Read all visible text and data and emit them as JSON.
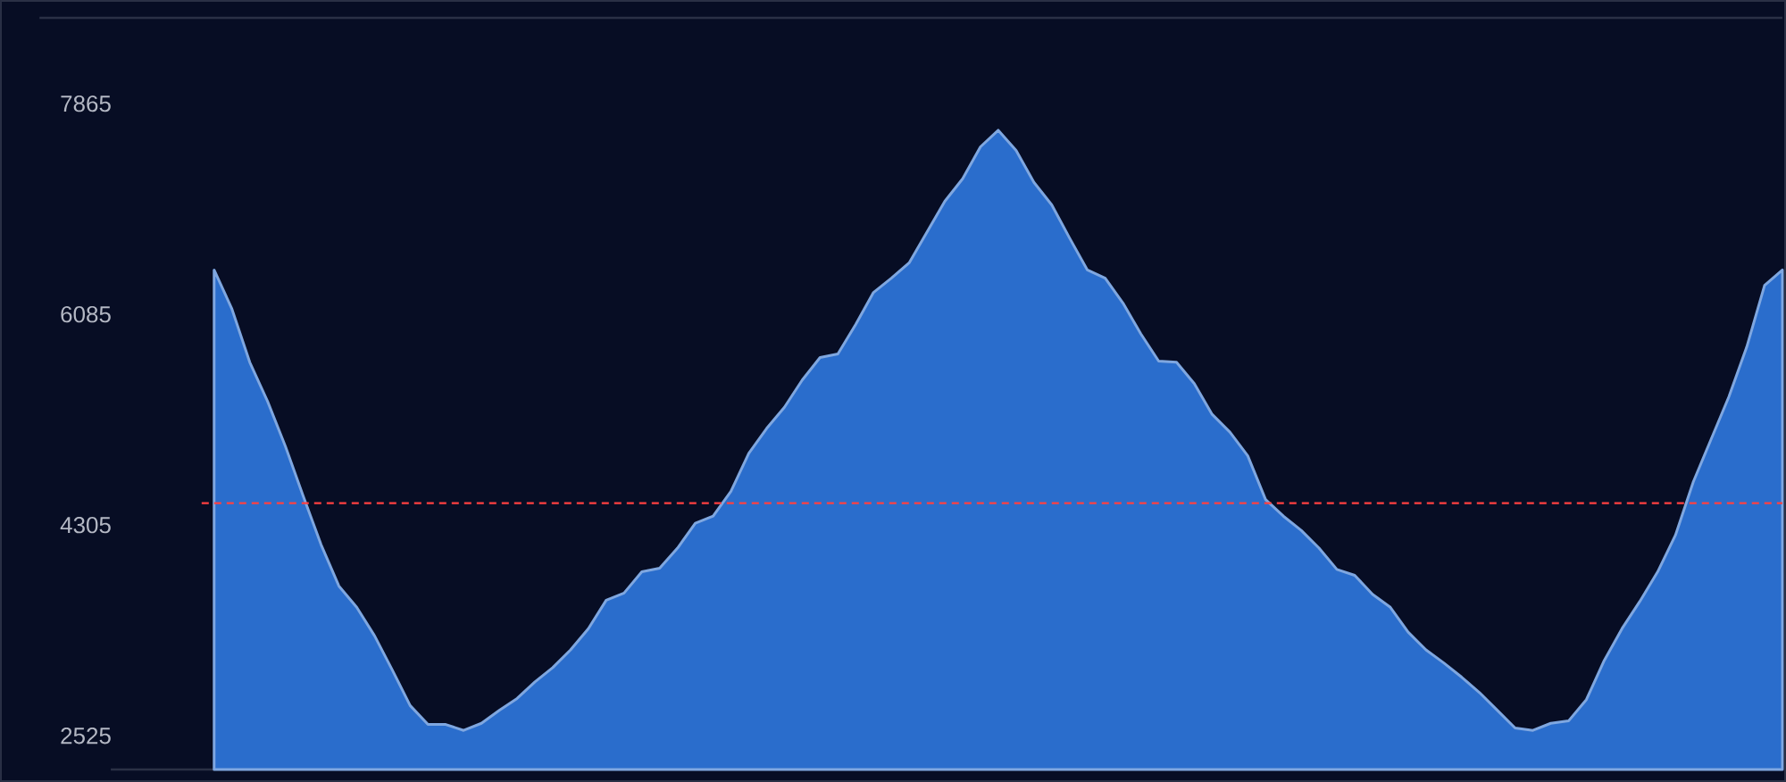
{
  "chart_data": {
    "type": "area",
    "categories": [
      null,
      null,
      null,
      null,
      null,
      null,
      null,
      null,
      null,
      null,
      null,
      null,
      null,
      null,
      null,
      null,
      null,
      null,
      null,
      null,
      null,
      null,
      null,
      null,
      null,
      null,
      null,
      null,
      null,
      null,
      null,
      null,
      null,
      null,
      null,
      null,
      null,
      null,
      null,
      null,
      null,
      null,
      null,
      null,
      null,
      null,
      null,
      null,
      null,
      null,
      null,
      null,
      null,
      null,
      null,
      null,
      null,
      null,
      null,
      null,
      null,
      null,
      null,
      null,
      null,
      null,
      null,
      null,
      null,
      null,
      null,
      null,
      null,
      null,
      null,
      null,
      null,
      null,
      null,
      null,
      null,
      null,
      null,
      null,
      null,
      null,
      null,
      null,
      null
    ],
    "series": [
      {
        "color": "#2a6dcc",
        "values": [
          6460,
          6130,
          5680,
          5350,
          4970,
          4550,
          4140,
          3790,
          3610,
          3370,
          3080,
          2780,
          2620,
          2620,
          2570,
          2630,
          2740,
          2840,
          2980,
          3100,
          3250,
          3430,
          3670,
          3730,
          3910,
          3940,
          4110,
          4320,
          4380,
          4590,
          4910,
          5120,
          5300,
          5530,
          5720,
          5750,
          6000,
          6270,
          6390,
          6520,
          6780,
          7040,
          7230,
          7500,
          7640,
          7470,
          7200,
          7010,
          6730,
          6460,
          6390,
          6180,
          5920,
          5690,
          5680,
          5500,
          5240,
          5090,
          4890,
          4520,
          4380,
          4260,
          4110,
          3930,
          3880,
          3720,
          3610,
          3400,
          3250,
          3140,
          3020,
          2890,
          2740,
          2590,
          2570,
          2630,
          2650,
          2830,
          3160,
          3430,
          3660,
          3910,
          4220,
          4670,
          5030,
          5390,
          5810,
          6330,
          6460
        ]
      }
    ],
    "ylim": [
      2240,
      8590
    ],
    "yticks": [
      2525,
      4305,
      6085,
      7865
    ],
    "ref_lines": [
      {
        "axis": "y",
        "value": 4490,
        "color": "#ff4040",
        "line_style": "dashed"
      }
    ]
  }
}
